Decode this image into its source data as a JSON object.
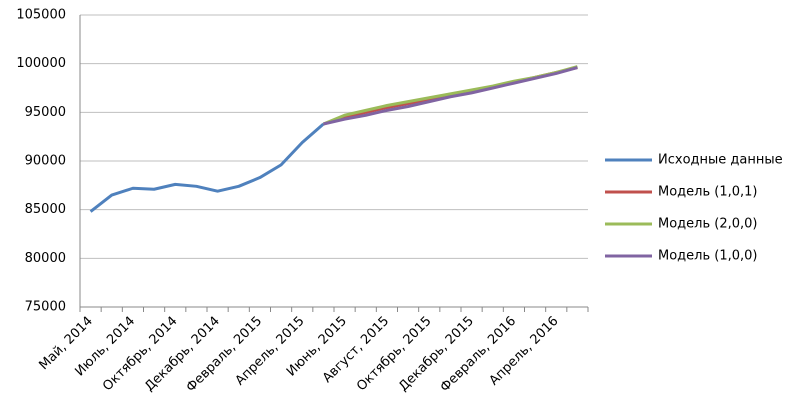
{
  "chart_data": {
    "type": "line",
    "categories": [
      "Май, 2014",
      null,
      "Июль, 2014",
      null,
      "Октябрь, 2014",
      null,
      "Декабрь, 2014",
      null,
      "Февраль, 2015",
      null,
      "Апрель, 2015",
      null,
      "Июнь, 2015",
      null,
      "Август, 2015",
      null,
      "Октябрь, 2015",
      null,
      "Декабрь, 2015",
      null,
      "Февраль, 2016",
      null,
      "Апрель, 2016",
      null
    ],
    "series": [
      {
        "name": "Исходные данные",
        "color": "#4f81bd",
        "values": [
          84800,
          86500,
          87200,
          87100,
          87600,
          87400,
          86900,
          87400,
          88300,
          89600,
          91900,
          93800,
          null,
          null,
          null,
          null,
          null,
          null,
          null,
          null,
          null,
          null,
          null,
          null
        ]
      },
      {
        "name": "Модель (1,0,1)",
        "color": "#c0504d",
        "values": [
          null,
          null,
          null,
          null,
          null,
          null,
          null,
          null,
          null,
          null,
          null,
          93800,
          94500,
          95000,
          95500,
          95900,
          96300,
          96800,
          97200,
          97600,
          98100,
          98600,
          99100,
          99600
        ]
      },
      {
        "name": "Модель (2,0,0)",
        "color": "#9bbb59",
        "values": [
          null,
          null,
          null,
          null,
          null,
          null,
          null,
          null,
          null,
          null,
          null,
          93800,
          94700,
          95200,
          95700,
          96100,
          96500,
          96900,
          97300,
          97700,
          98200,
          98600,
          99100,
          99700
        ]
      },
      {
        "name": "Модель (1,0,0)",
        "color": "#8064a2",
        "values": [
          null,
          null,
          null,
          null,
          null,
          null,
          null,
          null,
          null,
          null,
          null,
          93800,
          94300,
          94700,
          95200,
          95600,
          96100,
          96600,
          97000,
          97500,
          98000,
          98500,
          99000,
          99600
        ]
      }
    ],
    "ylim": [
      75000,
      105000
    ],
    "yticks": [
      75000,
      80000,
      85000,
      90000,
      95000,
      100000,
      105000
    ],
    "grid": true,
    "legend": "right"
  }
}
